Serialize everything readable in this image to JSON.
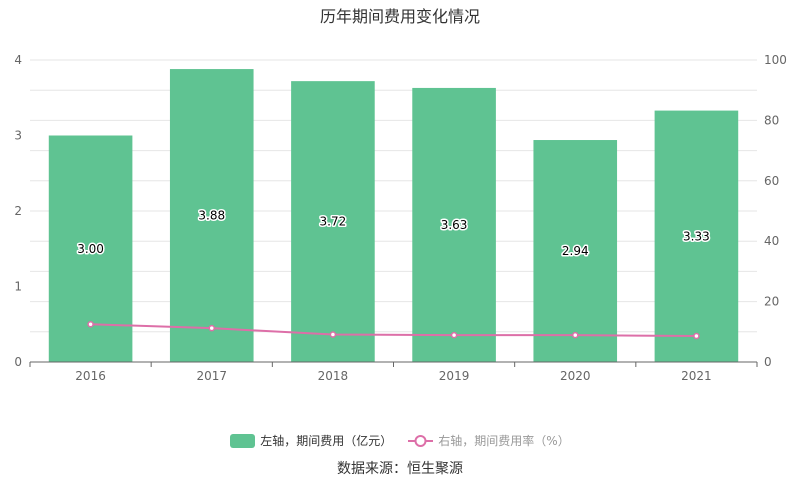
{
  "title": "历年期间费用变化情况",
  "source": "数据来源：恒生聚源",
  "legend": {
    "bar": "左轴，期间费用（亿元）",
    "line": "右轴，期间费用率（%）"
  },
  "colors": {
    "bar": "#5fc392",
    "line": "#dd6fa8"
  },
  "chart_data": {
    "type": "bar",
    "categories": [
      "2016",
      "2017",
      "2018",
      "2019",
      "2020",
      "2021"
    ],
    "series": [
      {
        "name": "左轴，期间费用（亿元）",
        "type": "bar",
        "axis": "left",
        "values": [
          3.0,
          3.88,
          3.72,
          3.63,
          2.94,
          3.33
        ],
        "labels": [
          "3.00",
          "3.88",
          "3.72",
          "3.63",
          "2.94",
          "3.33"
        ]
      },
      {
        "name": "右轴，期间费用率（%）",
        "type": "line",
        "axis": "right",
        "values": [
          12.5,
          11.2,
          9.1,
          8.9,
          8.9,
          8.6
        ]
      }
    ],
    "y_left": {
      "ticks": [
        "0",
        "1",
        "2",
        "3",
        "4"
      ],
      "ylim": [
        0,
        4
      ]
    },
    "y_right": {
      "ticks": [
        "0",
        "20",
        "40",
        "60",
        "80",
        "100"
      ],
      "ylim": [
        0,
        100
      ]
    },
    "grid": true,
    "legend_position": "bottom"
  }
}
